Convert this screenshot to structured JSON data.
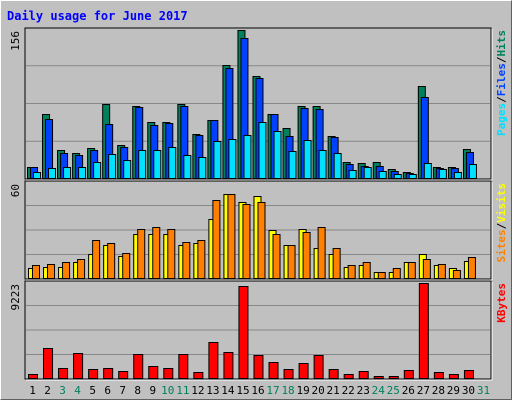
{
  "title": "Daily usage for June 2017",
  "colors": {
    "background": "#c0c0c0",
    "plot_background": "#c0c0c0",
    "gridline": "#888888",
    "title": "#0000ff",
    "hits": "#00805c",
    "files": "#0040ff",
    "pages": "#00e0ff",
    "visits": "#ffff00",
    "sites": "#ff8000",
    "kbytes": "#ff0000",
    "weekend_day": "#00805c",
    "weekday": "#000000"
  },
  "days": [
    "1",
    "2",
    "3",
    "4",
    "5",
    "6",
    "7",
    "8",
    "9",
    "10",
    "11",
    "12",
    "13",
    "14",
    "15",
    "16",
    "17",
    "18",
    "19",
    "20",
    "21",
    "22",
    "23",
    "24",
    "25",
    "26",
    "27",
    "28",
    "29",
    "30",
    "31"
  ],
  "weekend_days": [
    "3",
    "4",
    "10",
    "11",
    "17",
    "18",
    "24",
    "25",
    "31"
  ],
  "chart_data": [
    {
      "type": "bar",
      "panel": "top",
      "ymax_label": "156",
      "ylim": [
        0,
        156
      ],
      "legend": [
        {
          "text": "Pages",
          "color": "#00e0ff"
        },
        {
          "text": "/",
          "color": "#000000"
        },
        {
          "text": "Files",
          "color": "#0040ff"
        },
        {
          "text": "/",
          "color": "#000000"
        },
        {
          "text": "Hits",
          "color": "#00805c"
        }
      ],
      "series": [
        {
          "name": "Hits",
          "values": [
            12,
            67,
            30,
            26,
            32,
            78,
            35,
            76,
            59,
            59,
            78,
            46,
            61,
            119,
            156,
            107,
            67,
            53,
            76,
            76,
            44,
            17,
            16,
            17,
            9,
            6,
            97,
            12,
            12,
            31,
            0
          ]
        },
        {
          "name": "Files",
          "values": [
            12,
            62,
            26,
            24,
            30,
            57,
            33,
            75,
            56,
            58,
            76,
            45,
            61,
            116,
            148,
            105,
            67,
            44,
            74,
            73,
            43,
            15,
            13,
            13,
            7,
            5,
            85,
            11,
            11,
            27,
            0
          ]
        },
        {
          "name": "Pages",
          "values": [
            6,
            11,
            12,
            12,
            17,
            25,
            19,
            29,
            29,
            33,
            24,
            22,
            39,
            41,
            45,
            59,
            50,
            28,
            40,
            30,
            26,
            8,
            12,
            7,
            4,
            4,
            16,
            9,
            6,
            15,
            0
          ]
        }
      ]
    },
    {
      "type": "bar",
      "panel": "middle",
      "ymax_label": "60",
      "ylim": [
        0,
        60
      ],
      "legend": [
        {
          "text": "Sites",
          "color": "#ff8000"
        },
        {
          "text": "/",
          "color": "#000000"
        },
        {
          "text": "Visits",
          "color": "#ffff00"
        }
      ],
      "series": [
        {
          "name": "Visits",
          "values": [
            6,
            7,
            7,
            10,
            15,
            21,
            14,
            28,
            28,
            28,
            21,
            22,
            37,
            53,
            48,
            52,
            30,
            21,
            31,
            19,
            15,
            7,
            8,
            4,
            4,
            10,
            15,
            8,
            6,
            11,
            0
          ]
        },
        {
          "name": "Sites",
          "values": [
            8,
            9,
            10,
            12,
            24,
            22,
            16,
            31,
            32,
            31,
            23,
            24,
            49,
            53,
            47,
            48,
            28,
            21,
            29,
            32,
            19,
            8,
            10,
            4,
            6,
            10,
            12,
            9,
            5,
            13,
            0
          ]
        }
      ]
    },
    {
      "type": "bar",
      "panel": "bottom",
      "ymax_label": "9223",
      "ylim": [
        0,
        9223
      ],
      "legend": [
        {
          "text": "KBytes",
          "color": "#ff0000"
        }
      ],
      "series": [
        {
          "name": "KBytes",
          "values": [
            380,
            2950,
            950,
            2450,
            900,
            950,
            650,
            2350,
            1200,
            1000,
            2300,
            600,
            3450,
            2500,
            8900,
            2200,
            1600,
            850,
            1500,
            2200,
            850,
            400,
            650,
            200,
            150,
            800,
            9223,
            600,
            350,
            750,
            0
          ]
        }
      ]
    }
  ]
}
